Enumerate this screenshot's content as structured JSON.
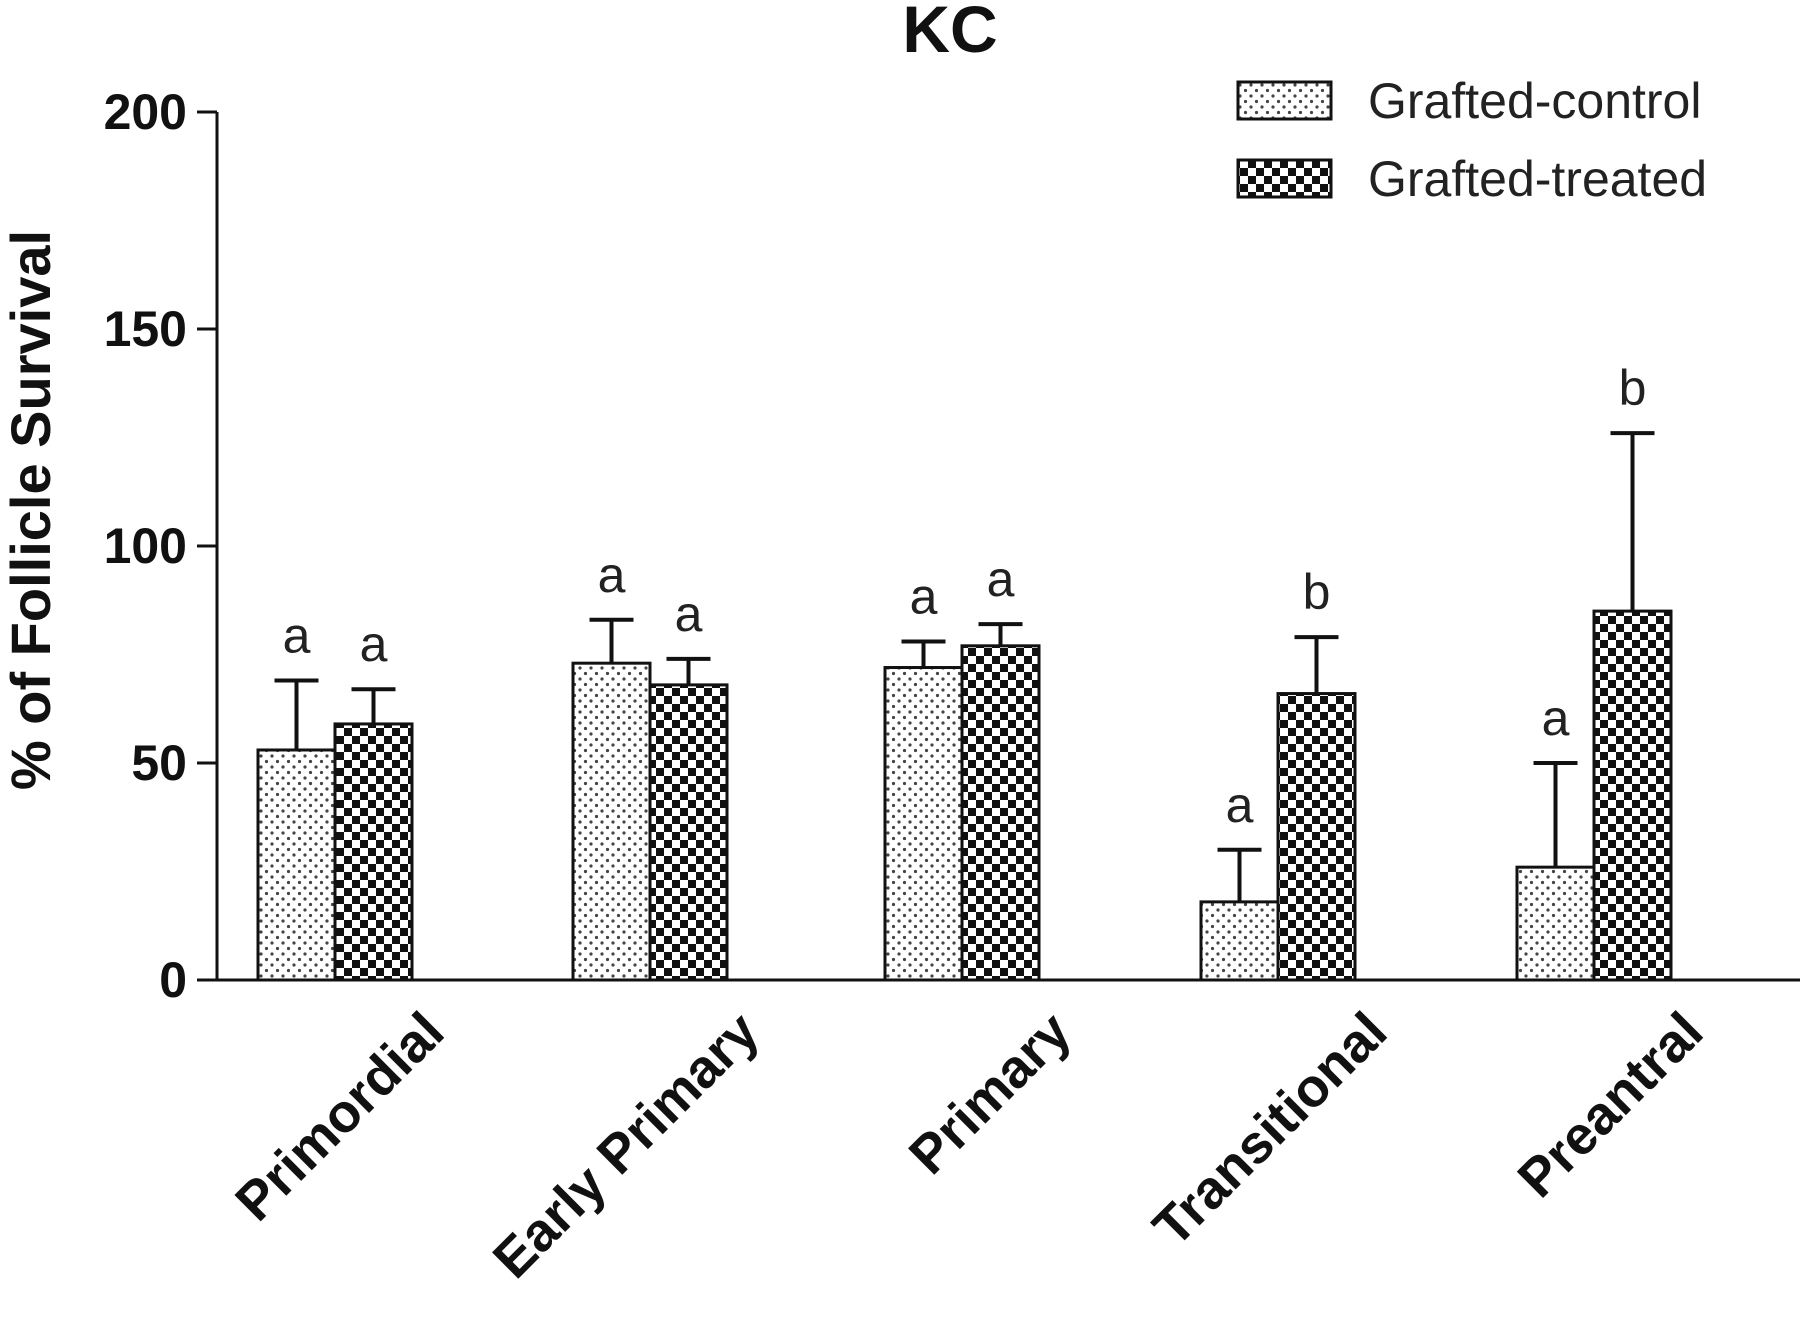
{
  "chart_data": {
    "type": "bar",
    "title": "KC",
    "ylabel": "% of Follicle Survival",
    "xlabel": "",
    "ylim": [
      0,
      200
    ],
    "yticks": [
      0,
      50,
      100,
      150,
      200
    ],
    "categories": [
      "Primordial",
      "Early Primary",
      "Primary",
      "Transitional",
      "Preantral"
    ],
    "series": [
      {
        "name": "Grafted-control",
        "pattern": "dots",
        "values": [
          53,
          73,
          72,
          18,
          26
        ],
        "errors": [
          16,
          10,
          6,
          12,
          24
        ],
        "labels": [
          "a",
          "a",
          "a",
          "a",
          "a"
        ]
      },
      {
        "name": "Grafted-treated",
        "pattern": "checker",
        "values": [
          59,
          68,
          77,
          66,
          85
        ],
        "errors": [
          8,
          6,
          5,
          13,
          41
        ],
        "labels": [
          "a",
          "a",
          "a",
          "b",
          "b"
        ]
      }
    ],
    "legend": "top-right",
    "grid": false,
    "colors": {
      "axis": "#111111",
      "bar_fill": "#ffffff",
      "ink": "#111111"
    }
  }
}
